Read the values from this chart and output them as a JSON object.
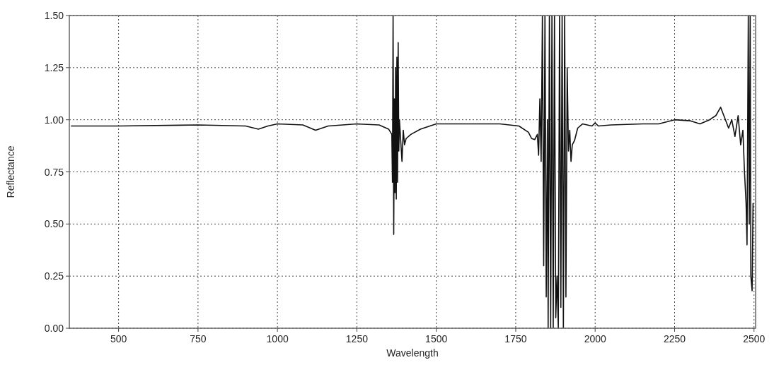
{
  "chart_data": {
    "type": "line",
    "xlabel": "Wavelength",
    "ylabel": "Reflectance",
    "xlim": [
      345,
      2505
    ],
    "xticks": [
      500,
      750,
      1000,
      1250,
      1500,
      1750,
      2000,
      2250,
      2500
    ],
    "ylim": [
      0,
      1.5
    ],
    "yticks": [
      {
        "value": 0,
        "label": "0.00"
      },
      {
        "value": 0.25,
        "label": "0.25"
      },
      {
        "value": 0.5,
        "label": "0.50"
      },
      {
        "value": 0.75,
        "label": "0.75"
      },
      {
        "value": 1,
        "label": "1.00"
      },
      {
        "value": 1.25,
        "label": "1.25"
      },
      {
        "value": 1.5,
        "label": "1.50"
      }
    ],
    "grid": true,
    "marker": "none",
    "line_style": "solid",
    "series": [
      {
        "color": "#111111",
        "x": [
          350,
          500,
          750,
          900,
          940,
          970,
          1000,
          1080,
          1120,
          1160,
          1250,
          1320,
          1350,
          1360,
          1362,
          1364,
          1366,
          1368,
          1370,
          1372,
          1374,
          1376,
          1378,
          1380,
          1382,
          1384,
          1388,
          1392,
          1396,
          1400,
          1405,
          1420,
          1450,
          1490,
          1500,
          1600,
          1700,
          1760,
          1790,
          1800,
          1810,
          1818,
          1822,
          1826,
          1830,
          1834,
          1838,
          1842,
          1846,
          1850,
          1852,
          1856,
          1860,
          1864,
          1868,
          1872,
          1876,
          1880,
          1884,
          1888,
          1892,
          1896,
          1900,
          1904,
          1908,
          1912,
          1916,
          1920,
          1924,
          1928,
          1935,
          1945,
          1960,
          1990,
          2000,
          2010,
          2050,
          2150,
          2200,
          2250,
          2300,
          2330,
          2360,
          2380,
          2395,
          2405,
          2420,
          2430,
          2440,
          2450,
          2458,
          2465,
          2470,
          2475,
          2478,
          2482,
          2485,
          2488,
          2490,
          2494,
          2497
        ],
        "values": [
          0.97,
          0.97,
          0.975,
          0.97,
          0.955,
          0.97,
          0.98,
          0.975,
          0.95,
          0.97,
          0.98,
          0.975,
          0.955,
          0.93,
          0.7,
          1.5,
          0.45,
          1.1,
          0.65,
          1.25,
          0.62,
          1.3,
          0.7,
          1.37,
          0.85,
          1.0,
          0.9,
          0.8,
          0.95,
          0.88,
          0.91,
          0.93,
          0.955,
          0.975,
          0.98,
          0.98,
          0.98,
          0.97,
          0.94,
          0.91,
          0.905,
          0.93,
          0.83,
          1.1,
          0.8,
          1.5,
          0.3,
          1.5,
          0.15,
          1.0,
          0,
          1.5,
          0,
          1.5,
          0,
          1.5,
          0.05,
          0.25,
          0,
          1.5,
          0.1,
          1.5,
          0,
          1.5,
          0.15,
          1.25,
          0.85,
          0.95,
          0.8,
          0.88,
          0.9,
          0.96,
          0.98,
          0.97,
          0.985,
          0.97,
          0.975,
          0.98,
          0.98,
          1.0,
          0.995,
          0.98,
          1.0,
          1.02,
          1.06,
          1.02,
          0.96,
          1.0,
          0.92,
          1.02,
          0.88,
          0.95,
          0.75,
          0.6,
          0.4,
          1.5,
          0.5,
          1.5,
          0.25,
          0.18,
          0.6
        ]
      }
    ]
  }
}
